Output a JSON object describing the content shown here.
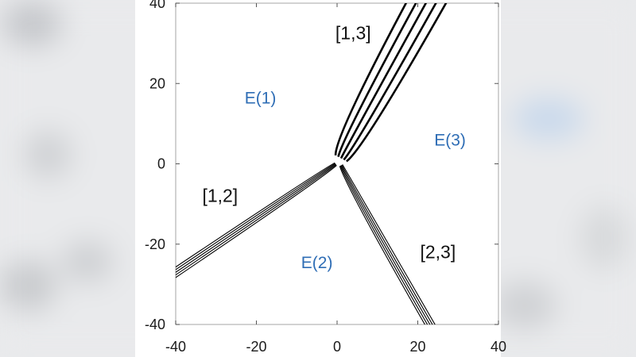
{
  "background": {
    "color": "#e9eaec",
    "accent": "#c9d9ec"
  },
  "figure": {
    "frame_color": "#b5b5b5",
    "line_color": "#000000",
    "region_label_color": "#2e6db5",
    "axes": {
      "xlim": [
        -40,
        40
      ],
      "ylim": [
        -40,
        40
      ],
      "x_ticks": [
        -40,
        -20,
        0,
        20,
        40
      ],
      "y_ticks": [
        -40,
        -20,
        0,
        20,
        40
      ],
      "x_tick_labels": [
        "-40",
        "-20",
        "0",
        "20",
        "40"
      ],
      "y_tick_labels": [
        "-40",
        "-20",
        "0",
        "20",
        "40"
      ]
    },
    "regions": [
      {
        "label": "E(1)",
        "x": -19,
        "y": 15
      },
      {
        "label": "E(2)",
        "x": -5,
        "y": -26
      },
      {
        "label": "E(3)",
        "x": 28,
        "y": 4.5
      }
    ],
    "boundaries": [
      {
        "label": "[1,3]",
        "label_x": 4,
        "label_y": 31,
        "end_x": 22,
        "end_y": 40,
        "curves": 5,
        "spacing": 2.2,
        "weight": "bold"
      },
      {
        "label": "[1,2]",
        "label_x": -29,
        "label_y": -9.5,
        "end_x": -40,
        "end_y": -27,
        "curves": 5,
        "spacing": 0.55,
        "weight": "thin"
      },
      {
        "label": "[2,3]",
        "label_x": 25,
        "label_y": -23.5,
        "end_x": 23,
        "end_y": -40,
        "curves": 5,
        "spacing": 0.55,
        "weight": "thin"
      }
    ]
  }
}
